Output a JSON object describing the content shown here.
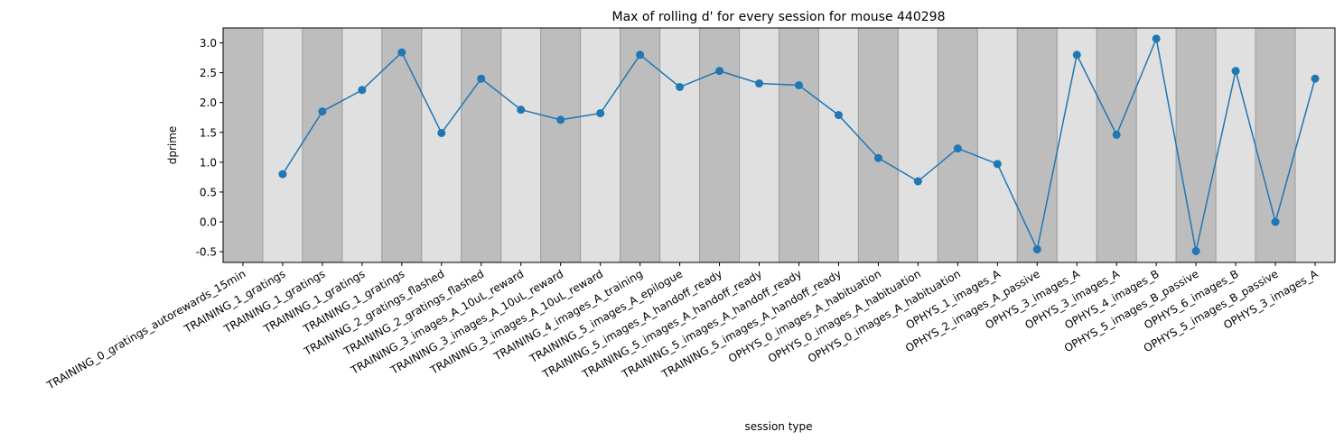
{
  "chart_data": {
    "type": "line",
    "title": "Max of rolling d' for every session for mouse 440298",
    "xlabel": "session type",
    "ylabel": "dprime",
    "ylim": [
      -0.68,
      3.25
    ],
    "yticks": [
      "-0.5",
      "0.0",
      "0.5",
      "1.0",
      "1.5",
      "2.0",
      "2.5",
      "3.0"
    ],
    "ytick_values": [
      -0.5,
      0.0,
      0.5,
      1.0,
      1.5,
      2.0,
      2.5,
      3.0
    ],
    "grid": false,
    "legend": "none",
    "categories": [
      "TRAINING_0_gratings_autorewards_15min",
      "TRAINING_1_gratings",
      "TRAINING_1_gratings",
      "TRAINING_1_gratings",
      "TRAINING_1_gratings",
      "TRAINING_2_gratings_flashed",
      "TRAINING_2_gratings_flashed",
      "TRAINING_3_images_A_10uL_reward",
      "TRAINING_3_images_A_10uL_reward",
      "TRAINING_3_images_A_10uL_reward",
      "TRAINING_4_images_A_training",
      "TRAINING_5_images_A_epilogue",
      "TRAINING_5_images_A_handoff_ready",
      "TRAINING_5_images_A_handoff_ready",
      "TRAINING_5_images_A_handoff_ready",
      "TRAINING_5_images_A_handoff_ready",
      "OPHYS_0_images_A_habituation",
      "OPHYS_0_images_A_habituation",
      "OPHYS_0_images_A_habituation",
      "OPHYS_1_images_A",
      "OPHYS_2_images_A_passive",
      "OPHYS_3_images_A",
      "OPHYS_3_images_A",
      "OPHYS_4_images_B",
      "OPHYS_5_images_B_passive",
      "OPHYS_6_images_B",
      "OPHYS_5_images_B_passive",
      "OPHYS_3_images_A"
    ],
    "values": [
      null,
      0.8,
      1.85,
      2.21,
      2.84,
      1.49,
      2.4,
      1.88,
      1.71,
      1.82,
      2.8,
      2.26,
      2.53,
      2.32,
      2.29,
      1.79,
      1.07,
      0.68,
      1.23,
      0.97,
      -0.46,
      2.8,
      1.46,
      3.07,
      -0.49,
      2.53,
      0.0,
      2.4
    ],
    "band_shading": [
      "dark",
      "light",
      "dark",
      "light",
      "dark",
      "light",
      "dark",
      "light",
      "dark",
      "light",
      "dark",
      "light",
      "dark",
      "light",
      "dark",
      "light",
      "dark",
      "light",
      "dark",
      "light",
      "dark",
      "light",
      "dark",
      "light",
      "dark",
      "light",
      "dark",
      "light"
    ],
    "colors": {
      "line": "#1f77b4",
      "band_dark": "#bdbdbd",
      "band_light": "#e0e0e0",
      "band_edge": "#9e9e9e"
    }
  }
}
